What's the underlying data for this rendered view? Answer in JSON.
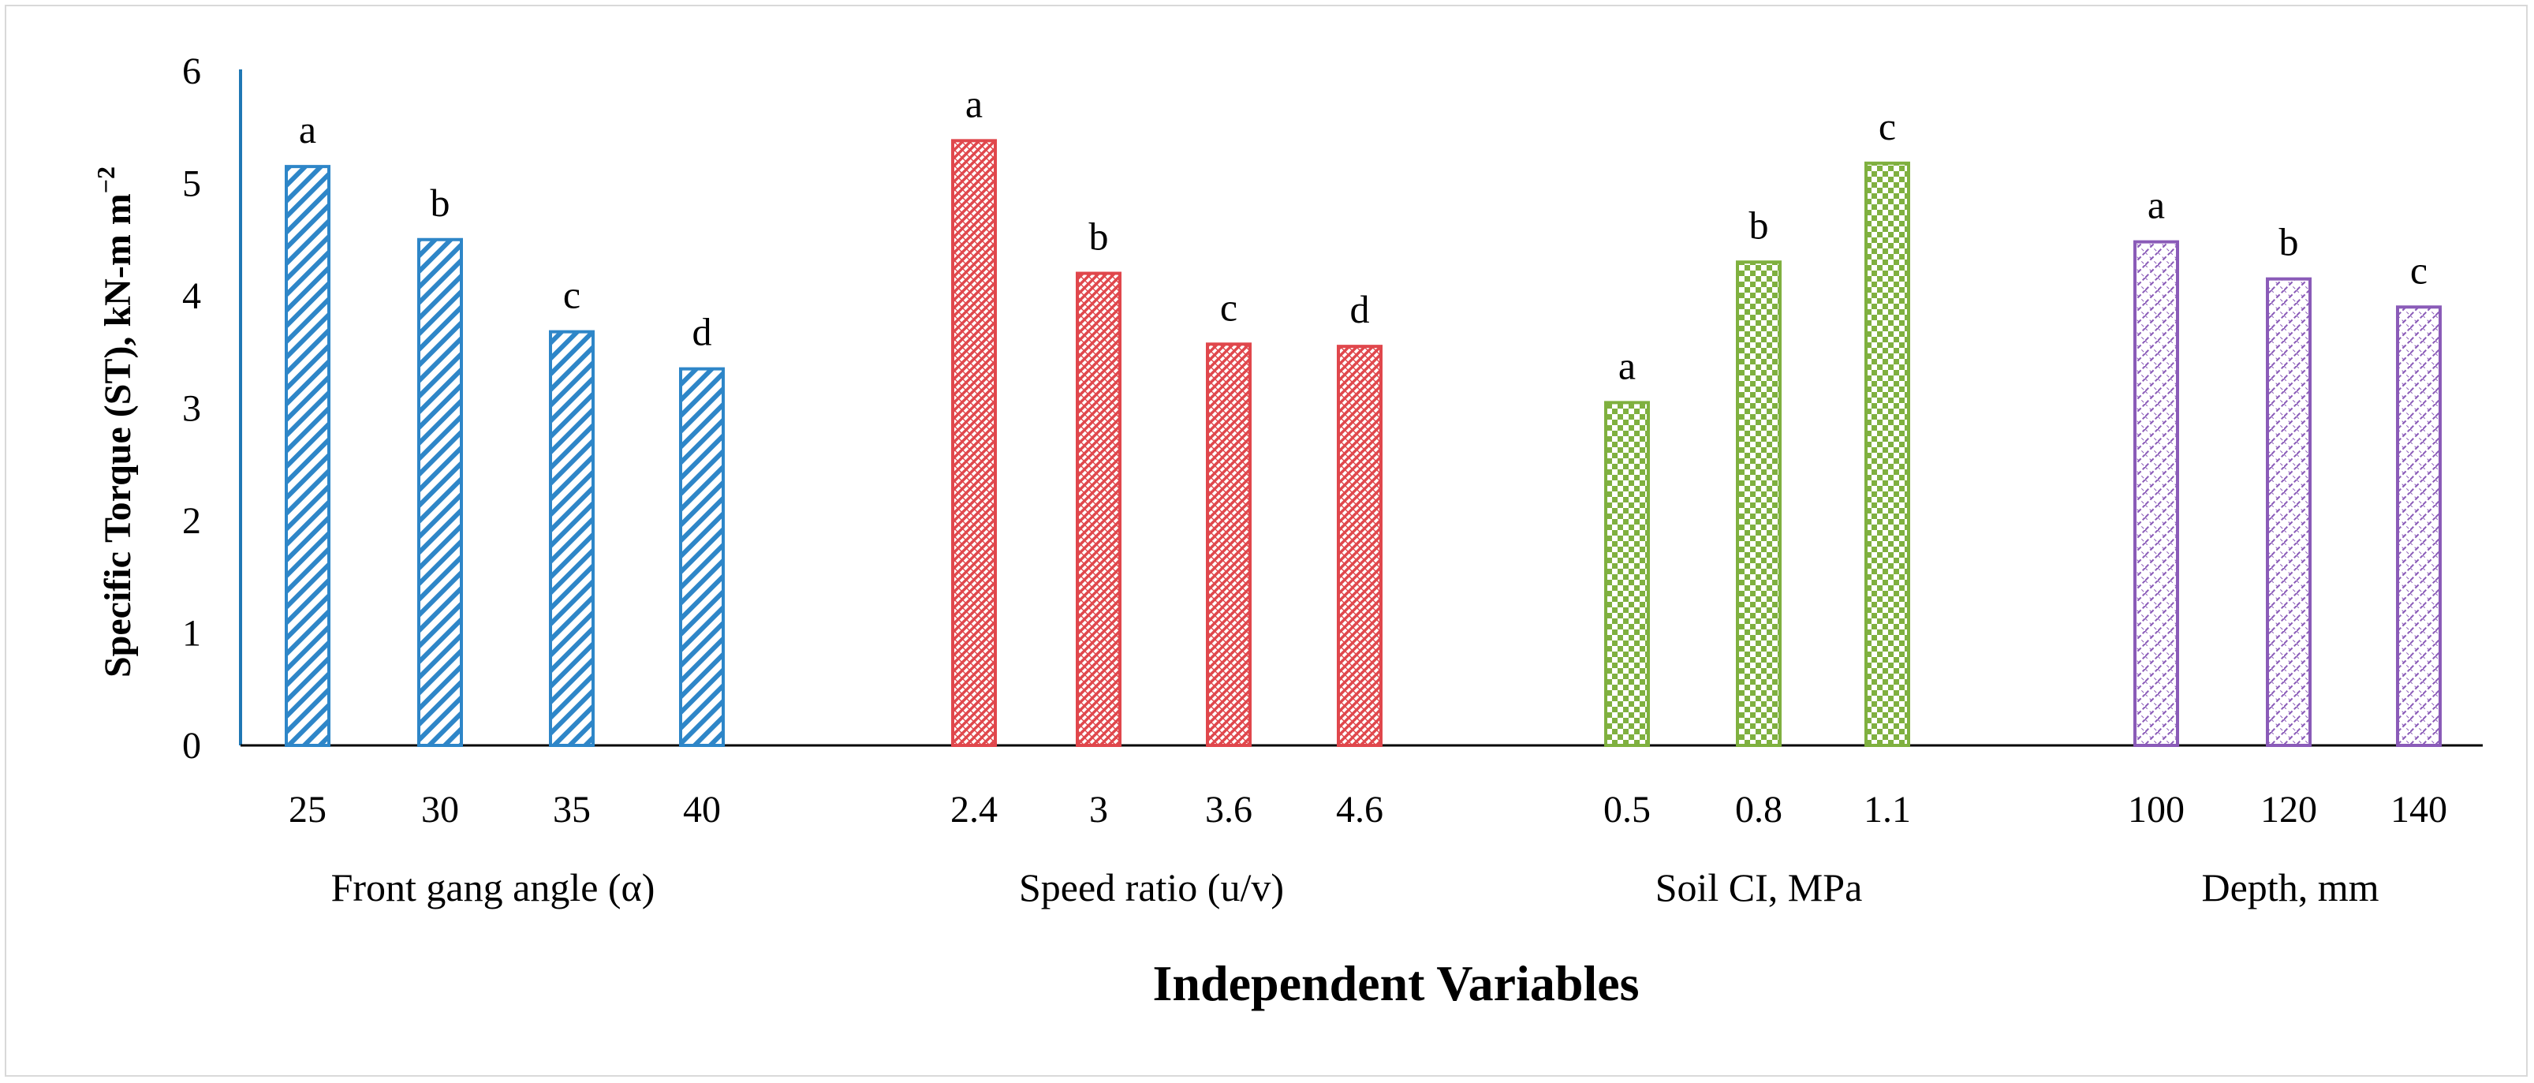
{
  "chart_data": {
    "type": "bar",
    "title": "",
    "xlabel": "Independent Variables",
    "ylabel": "Specific Torque (ST), kN-m m",
    "ylabel_sup": "−2",
    "ylim": [
      0,
      6
    ],
    "yticks": [
      "0",
      "1",
      "2",
      "3",
      "4",
      "5",
      "6"
    ],
    "grid": false,
    "groups": [
      {
        "name": "Front gang angle (α)",
        "color": "#2e86c8",
        "pattern": "diag-dn",
        "categories": [
          "25",
          "30",
          "35",
          "40"
        ],
        "values": [
          5.15,
          4.5,
          3.68,
          3.35
        ],
        "letters": [
          "a",
          "b",
          "c",
          "d"
        ]
      },
      {
        "name": "Speed ratio (u/v)",
        "color": "#e0474c",
        "pattern": "zigzag",
        "categories": [
          "2.4",
          "3",
          "3.6",
          "4.6"
        ],
        "values": [
          5.38,
          4.2,
          3.57,
          3.55
        ],
        "letters": [
          "a",
          "b",
          "c",
          "d"
        ]
      },
      {
        "name": "Soil CI, MPa",
        "color": "#7fb03f",
        "pattern": "checker",
        "categories": [
          "0.5",
          "0.8",
          "1.1"
        ],
        "values": [
          3.05,
          4.3,
          5.18
        ],
        "letters": [
          "a",
          "b",
          "c"
        ]
      },
      {
        "name": "Depth, mm",
        "color": "#8a5bb8",
        "pattern": "diag-up-dash",
        "categories": [
          "100",
          "120",
          "140"
        ],
        "values": [
          4.48,
          4.15,
          3.9
        ],
        "letters": [
          "a",
          "b",
          "c"
        ]
      }
    ]
  }
}
